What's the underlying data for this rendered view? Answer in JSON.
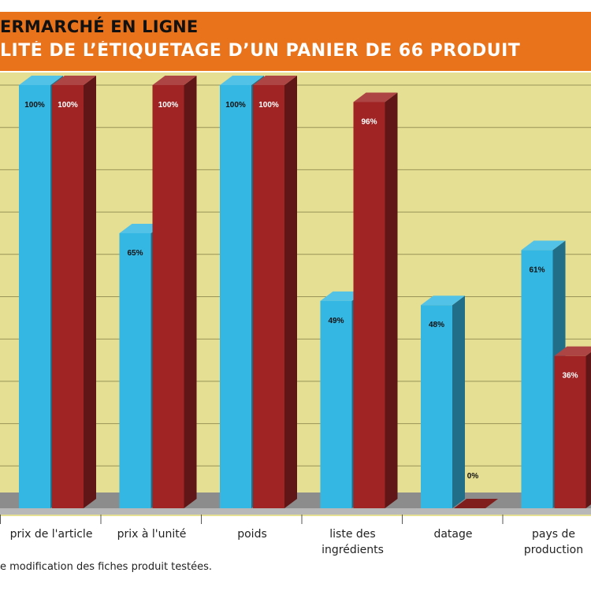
{
  "header": {
    "title": "ERMARCHÉ EN LIGNE",
    "subtitle": "LITÉ DE L’ÉTIQUETAGE D’UN PANIER DE 66 PRODUIT"
  },
  "footnote": "e modification des fiches produit testées.",
  "colors": {
    "banner": "#e8731a",
    "plot_background": "#e4df92",
    "floor": "#8c8c8c",
    "series_blue": "#35b7e3",
    "series_red": "#a02424"
  },
  "chart_data": {
    "type": "bar",
    "style": "3d-grouped",
    "categories": [
      "prix de l'article",
      "prix à l'unité",
      "poids",
      "liste des\ningrédients",
      "datage",
      "pays de\nproduction"
    ],
    "series": [
      {
        "color": "#35b7e3",
        "values": [
          100,
          65,
          100,
          49,
          48,
          61
        ],
        "labels": [
          "100%",
          "65%",
          "100%",
          "49%",
          "48%",
          "61%"
        ]
      },
      {
        "color": "#a02424",
        "values": [
          100,
          100,
          100,
          96,
          0,
          36
        ],
        "labels": [
          "100%",
          "100%",
          "100%",
          "96%",
          "0%",
          "36%"
        ]
      }
    ],
    "ylim": [
      0,
      100
    ],
    "grid": true
  }
}
